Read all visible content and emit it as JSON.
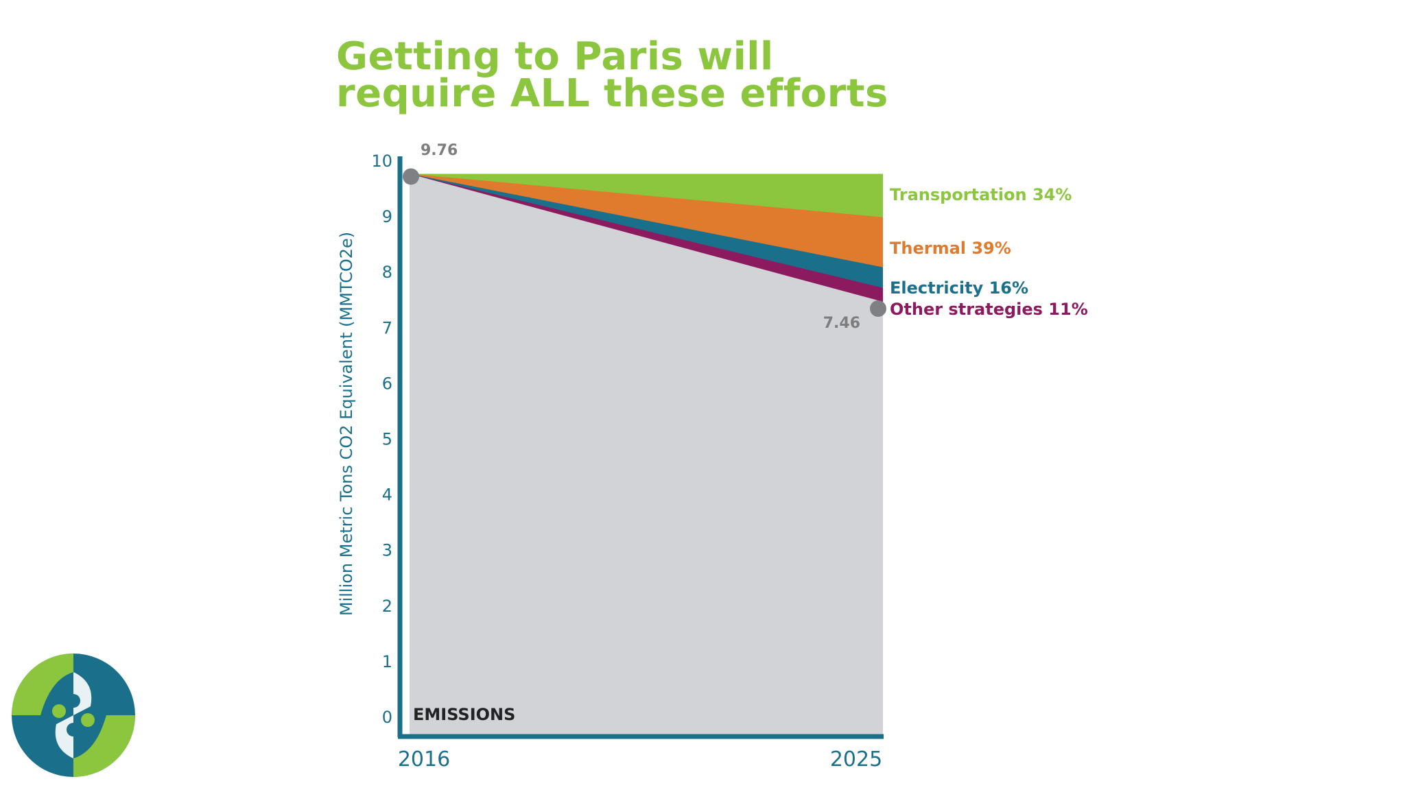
{
  "chart_data": {
    "type": "area",
    "title_lines": [
      "Getting to Paris will",
      "require ALL these efforts"
    ],
    "ylabel": "Million Metric Tons CO2 Equivalent (MMTCO2e)",
    "x": [
      "2016",
      "2025"
    ],
    "ylim": [
      0,
      10
    ],
    "yticks": [
      "0",
      "1",
      "2",
      "3",
      "4",
      "5",
      "6",
      "7",
      "8",
      "9",
      "10"
    ],
    "baseline_label": "EMISSIONS",
    "start_value": 9.76,
    "start_value_label": "9.76",
    "end_value": 7.46,
    "end_value_label": "7.46",
    "series": [
      {
        "name": "Other strategies",
        "share": "11%",
        "values": [
          9.76,
          7.46
        ],
        "color": "#8b1a5e"
      },
      {
        "name": "Electricity",
        "share": "16%",
        "values": [
          9.76,
          7.71
        ],
        "color": "#1a6f8a"
      },
      {
        "name": "Thermal",
        "share": "39%",
        "values": [
          9.76,
          8.08
        ],
        "color": "#e07b2e"
      },
      {
        "name": "Transportation",
        "share": "34%",
        "values": [
          9.76,
          8.98
        ],
        "color": "#8cc63f"
      }
    ],
    "top_value": 9.76,
    "colors": {
      "emissions_area": "#d2d3d7",
      "axis": "#1a6f8a",
      "tick_label": "#1a6f8a",
      "x_tick_label": "#1a6f8a",
      "value_label": "#7d7d80",
      "marker": "#7f8083",
      "title": "#8cc63f"
    }
  },
  "logo": {
    "name": "organization-logo",
    "colors": [
      "#8cc63f",
      "#1a6f8a"
    ]
  }
}
